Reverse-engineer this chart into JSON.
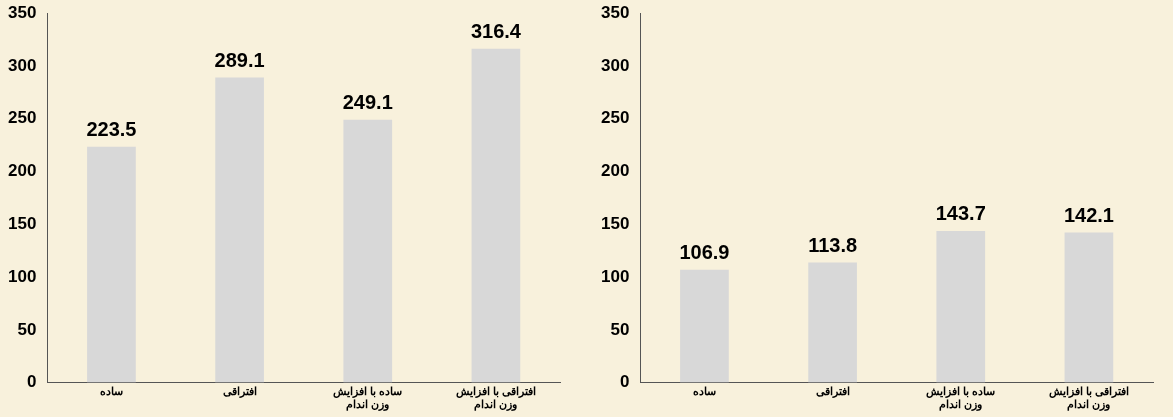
{
  "chart_data": [
    {
      "type": "bar",
      "categories": [
        "ساده",
        "افتراقی",
        "ساده با افزایش وزن اندام",
        "افتراقی با افزایش وزن اندام"
      ],
      "values": [
        223.5,
        289.1,
        249.1,
        316.4
      ],
      "color": "#d8d8d8",
      "ylim": [
        0,
        350
      ],
      "yticks": [
        0,
        50,
        100,
        150,
        200,
        250,
        300,
        350
      ],
      "grid": false,
      "legend": false,
      "data_labels": true
    },
    {
      "type": "bar",
      "categories": [
        "ساده",
        "افتراقی",
        "ساده با افزایش وزن اندام",
        "افتراقی با افزایش وزن اندام"
      ],
      "values": [
        106.9,
        113.8,
        143.7,
        142.1
      ],
      "color": "#d8d8d8",
      "ylim": [
        0,
        350
      ],
      "yticks": [
        0,
        50,
        100,
        150,
        200,
        250,
        300,
        350
      ],
      "grid": false,
      "legend": false,
      "data_labels": true
    }
  ]
}
